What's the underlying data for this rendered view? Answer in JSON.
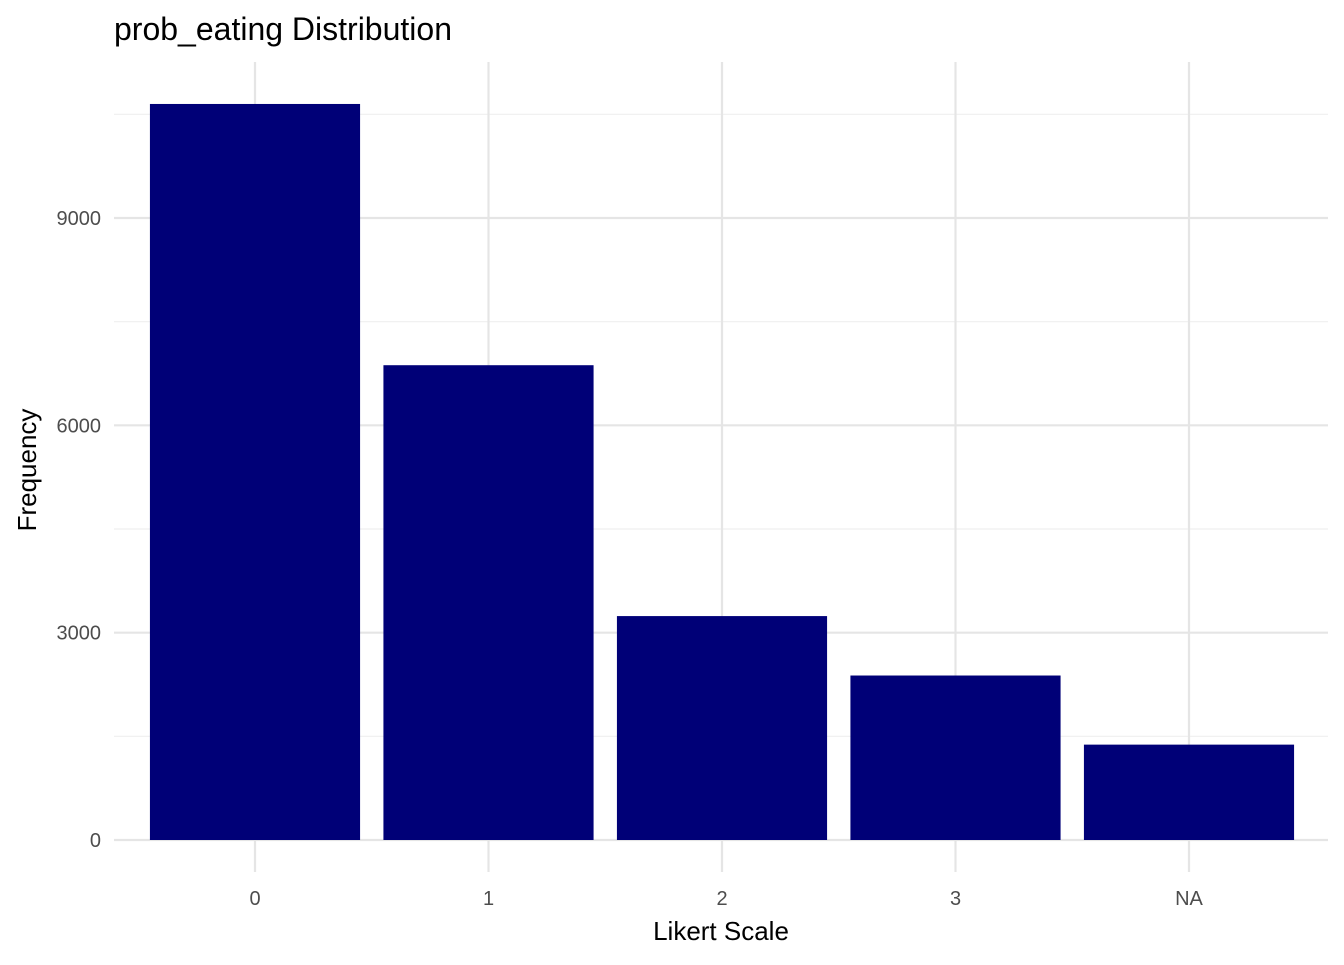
{
  "chart_data": {
    "type": "bar",
    "title": "prob_eating Distribution",
    "xlabel": "Likert Scale",
    "ylabel": "Frequency",
    "categories": [
      "0",
      "1",
      "2",
      "3",
      "NA"
    ],
    "values": [
      10650,
      6870,
      3240,
      2380,
      1380
    ],
    "ylim": [
      0,
      11000
    ],
    "yticks": [
      0,
      3000,
      6000,
      9000
    ],
    "yminor": [
      1500,
      4500,
      7500,
      10500
    ],
    "bar_color": "#000077",
    "grid": true,
    "legend": "none"
  }
}
